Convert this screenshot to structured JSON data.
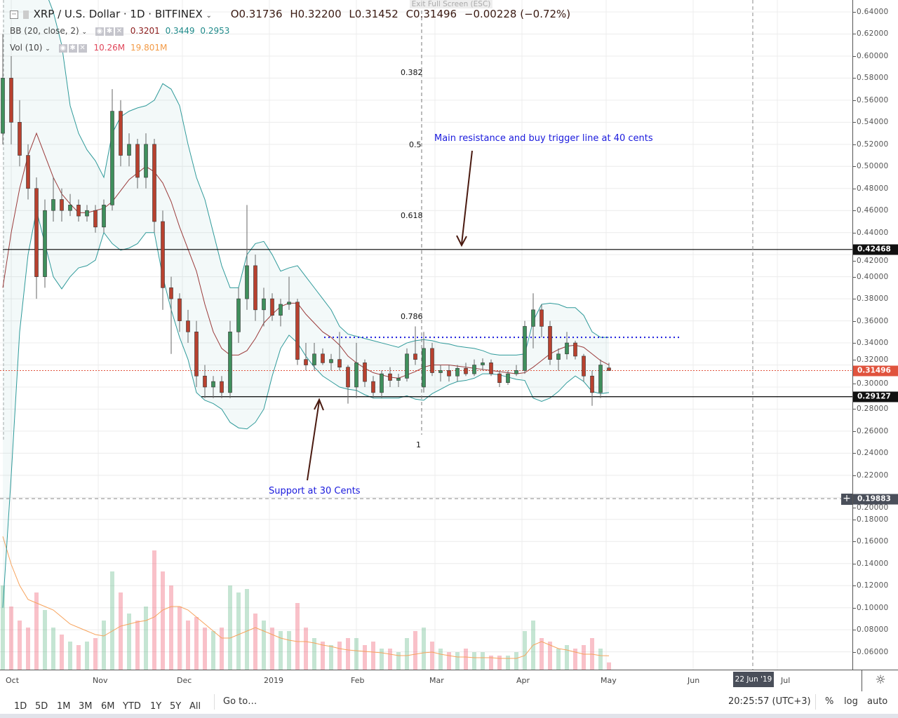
{
  "header": {
    "symbol": "XRP / U.S. Dollar · 1D · BITFINEX",
    "open": "O0.31736",
    "high": "H0.32200",
    "low": "L0.31452",
    "close": "C0.31496",
    "change": "−0.00228 (−0.72%)",
    "fullscreen_tooltip": "Exit Full Screen (ESC)"
  },
  "indicators": {
    "bb": {
      "label": "BB (20, close, 2)",
      "basis": "0.3201",
      "upper": "0.3449",
      "lower": "0.2953"
    },
    "vol": {
      "label": "Vol (10)",
      "value": "10.26M",
      "ma": "19.801M"
    }
  },
  "price_axis": {
    "ticks": [
      "0.64000",
      "0.62000",
      "0.60000",
      "0.58000",
      "0.56000",
      "0.54000",
      "0.52000",
      "0.50000",
      "0.48000",
      "0.46000",
      "0.44000",
      "0.42000",
      "0.40000",
      "0.38000",
      "0.36000",
      "0.34000",
      "0.32000",
      "0.30000",
      "0.28000",
      "0.26000",
      "0.24000",
      "0.22000",
      "0.20000",
      "0.18000",
      "0.16000",
      "0.14000",
      "0.12000",
      "0.10000",
      "0.08000",
      "0.06000"
    ],
    "resistance_label": "0.42468",
    "current_label": "0.31496",
    "support_label": "0.29127",
    "crosshair_label": "0.19883"
  },
  "time_axis": {
    "months": [
      "Oct",
      "Nov",
      "Dec",
      "2019",
      "Feb",
      "Mar",
      "Apr",
      "May",
      "Jun",
      "Jul"
    ],
    "crosshair_date": "22 Jun '19"
  },
  "annotations": {
    "resistance_note": "Main resistance and buy trigger line at 40 cents",
    "support_note": "Support at 30 Cents",
    "fib": [
      "0.382",
      "0.5",
      "0.618",
      "0.786",
      "1"
    ]
  },
  "toolbar": {
    "ranges": [
      "1D",
      "5D",
      "1M",
      "3M",
      "6M",
      "YTD",
      "1Y",
      "5Y",
      "All"
    ],
    "goto": "Go to…",
    "clock": "20:25:57 (UTC+3)",
    "percent": "%",
    "log": "log",
    "auto": "auto"
  },
  "colors": {
    "up": "#3f8f5c",
    "down": "#b8412f",
    "bb_band": "#2f9a9a",
    "bb_basis": "#9b3b3b",
    "vol_ma": "#f7a35c",
    "level_line": "#000000",
    "trigger_line": "#1a1add",
    "current_price": "#e0533d"
  },
  "chart_data": {
    "type": "candlestick",
    "interval": "1D",
    "ylim": [
      0.05,
      0.645
    ],
    "xrange": [
      "2018-09-28",
      "2019-07-15"
    ],
    "levels": {
      "resistance": 0.42468,
      "support": 0.29127,
      "trigger": 0.345,
      "current": 0.31496,
      "crosshair": 0.19883
    },
    "candles": [
      [
        "2018-09-28",
        0.53,
        0.62,
        0.52,
        0.58
      ],
      [
        "2018-10-01",
        0.58,
        0.6,
        0.52,
        0.54
      ],
      [
        "2018-10-04",
        0.54,
        0.56,
        0.5,
        0.51
      ],
      [
        "2018-10-07",
        0.51,
        0.52,
        0.47,
        0.48
      ],
      [
        "2018-10-10",
        0.48,
        0.49,
        0.38,
        0.4
      ],
      [
        "2018-10-13",
        0.4,
        0.47,
        0.39,
        0.46
      ],
      [
        "2018-10-16",
        0.46,
        0.49,
        0.45,
        0.47
      ],
      [
        "2018-10-19",
        0.47,
        0.48,
        0.45,
        0.46
      ],
      [
        "2018-10-22",
        0.46,
        0.475,
        0.455,
        0.465
      ],
      [
        "2018-10-25",
        0.465,
        0.47,
        0.45,
        0.455
      ],
      [
        "2018-10-28",
        0.455,
        0.465,
        0.45,
        0.46
      ],
      [
        "2018-10-31",
        0.46,
        0.465,
        0.44,
        0.445
      ],
      [
        "2018-11-03",
        0.445,
        0.47,
        0.44,
        0.465
      ],
      [
        "2018-11-06",
        0.465,
        0.57,
        0.46,
        0.55
      ],
      [
        "2018-11-09",
        0.55,
        0.56,
        0.5,
        0.51
      ],
      [
        "2018-11-12",
        0.51,
        0.53,
        0.5,
        0.52
      ],
      [
        "2018-11-15",
        0.52,
        0.525,
        0.48,
        0.49
      ],
      [
        "2018-11-18",
        0.49,
        0.53,
        0.48,
        0.52
      ],
      [
        "2018-11-21",
        0.52,
        0.525,
        0.44,
        0.45
      ],
      [
        "2018-11-24",
        0.45,
        0.46,
        0.37,
        0.39
      ],
      [
        "2018-11-27",
        0.39,
        0.4,
        0.33,
        0.38
      ],
      [
        "2018-11-30",
        0.38,
        0.385,
        0.35,
        0.36
      ],
      [
        "2018-12-03",
        0.36,
        0.37,
        0.34,
        0.35
      ],
      [
        "2018-12-06",
        0.35,
        0.36,
        0.3,
        0.31
      ],
      [
        "2018-12-09",
        0.31,
        0.32,
        0.29,
        0.3
      ],
      [
        "2018-12-12",
        0.3,
        0.31,
        0.29,
        0.305
      ],
      [
        "2018-12-15",
        0.305,
        0.31,
        0.29,
        0.295
      ],
      [
        "2018-12-18",
        0.295,
        0.36,
        0.29,
        0.35
      ],
      [
        "2018-12-21",
        0.35,
        0.39,
        0.34,
        0.38
      ],
      [
        "2018-12-24",
        0.38,
        0.465,
        0.37,
        0.41
      ],
      [
        "2018-12-27",
        0.41,
        0.42,
        0.36,
        0.37
      ],
      [
        "2018-12-30",
        0.37,
        0.39,
        0.355,
        0.38
      ],
      [
        "2019-01-02",
        0.38,
        0.385,
        0.36,
        0.365
      ],
      [
        "2019-01-05",
        0.365,
        0.38,
        0.355,
        0.375
      ],
      [
        "2019-01-08",
        0.375,
        0.4,
        0.37,
        0.377
      ],
      [
        "2019-01-11",
        0.377,
        0.38,
        0.32,
        0.325
      ],
      [
        "2019-01-14",
        0.325,
        0.34,
        0.315,
        0.32
      ],
      [
        "2019-01-17",
        0.32,
        0.34,
        0.315,
        0.33
      ],
      [
        "2019-01-20",
        0.33,
        0.335,
        0.32,
        0.322
      ],
      [
        "2019-01-23",
        0.322,
        0.33,
        0.315,
        0.325
      ],
      [
        "2019-01-26",
        0.325,
        0.35,
        0.315,
        0.318
      ],
      [
        "2019-01-29",
        0.318,
        0.32,
        0.285,
        0.3
      ],
      [
        "2019-02-01",
        0.3,
        0.34,
        0.29,
        0.322
      ],
      [
        "2019-02-04",
        0.322,
        0.325,
        0.3,
        0.305
      ],
      [
        "2019-02-07",
        0.305,
        0.31,
        0.29,
        0.295
      ],
      [
        "2019-02-10",
        0.295,
        0.315,
        0.29,
        0.312
      ],
      [
        "2019-02-13",
        0.312,
        0.318,
        0.3,
        0.306
      ],
      [
        "2019-02-16",
        0.306,
        0.312,
        0.3,
        0.308
      ],
      [
        "2019-02-19",
        0.308,
        0.335,
        0.305,
        0.33
      ],
      [
        "2019-02-22",
        0.33,
        0.355,
        0.32,
        0.325
      ],
      [
        "2019-02-25",
        0.3,
        0.35,
        0.295,
        0.335
      ],
      [
        "2019-02-28",
        0.335,
        0.34,
        0.31,
        0.313
      ],
      [
        "2019-03-03",
        0.313,
        0.32,
        0.305,
        0.315
      ],
      [
        "2019-03-06",
        0.315,
        0.32,
        0.305,
        0.31
      ],
      [
        "2019-03-09",
        0.31,
        0.32,
        0.305,
        0.317
      ],
      [
        "2019-03-12",
        0.317,
        0.322,
        0.31,
        0.312
      ],
      [
        "2019-03-15",
        0.312,
        0.325,
        0.31,
        0.32
      ],
      [
        "2019-03-18",
        0.32,
        0.326,
        0.315,
        0.322
      ],
      [
        "2019-03-21",
        0.322,
        0.325,
        0.31,
        0.312
      ],
      [
        "2019-03-24",
        0.312,
        0.315,
        0.3,
        0.304
      ],
      [
        "2019-03-27",
        0.304,
        0.315,
        0.302,
        0.312
      ],
      [
        "2019-03-30",
        0.312,
        0.32,
        0.31,
        0.315
      ],
      [
        "2019-04-02",
        0.315,
        0.36,
        0.312,
        0.355
      ],
      [
        "2019-04-05",
        0.355,
        0.385,
        0.335,
        0.37
      ],
      [
        "2019-04-08",
        0.37,
        0.375,
        0.345,
        0.355
      ],
      [
        "2019-04-11",
        0.355,
        0.36,
        0.32,
        0.325
      ],
      [
        "2019-04-14",
        0.325,
        0.335,
        0.315,
        0.33
      ],
      [
        "2019-04-17",
        0.33,
        0.35,
        0.325,
        0.34
      ],
      [
        "2019-04-20",
        0.34,
        0.342,
        0.325,
        0.328
      ],
      [
        "2019-04-23",
        0.328,
        0.33,
        0.305,
        0.31
      ],
      [
        "2019-04-26",
        0.31,
        0.315,
        0.283,
        0.295
      ],
      [
        "2019-04-29",
        0.295,
        0.325,
        0.29,
        0.32
      ],
      [
        "2019-05-02",
        0.31736,
        0.322,
        0.31452,
        0.31496
      ]
    ],
    "bb_upper": [
      0.7,
      0.7,
      0.7,
      0.69,
      0.68,
      0.66,
      0.64,
      0.61,
      0.555,
      0.53,
      0.515,
      0.505,
      0.49,
      0.53,
      0.545,
      0.55,
      0.553,
      0.555,
      0.56,
      0.575,
      0.57,
      0.555,
      0.52,
      0.49,
      0.47,
      0.44,
      0.41,
      0.39,
      0.39,
      0.42,
      0.43,
      0.432,
      0.42,
      0.405,
      0.408,
      0.41,
      0.4,
      0.39,
      0.38,
      0.37,
      0.355,
      0.348,
      0.346,
      0.344,
      0.342,
      0.34,
      0.338,
      0.336,
      0.34,
      0.342,
      0.343,
      0.342,
      0.34,
      0.339,
      0.337,
      0.336,
      0.335,
      0.333,
      0.33,
      0.329,
      0.329,
      0.329,
      0.33,
      0.36,
      0.375,
      0.376,
      0.375,
      0.372,
      0.372,
      0.365,
      0.35,
      0.345,
      0.345
    ],
    "bb_basis": [
      0.39,
      0.44,
      0.48,
      0.51,
      0.53,
      0.51,
      0.49,
      0.475,
      0.466,
      0.458,
      0.458,
      0.46,
      0.462,
      0.468,
      0.478,
      0.488,
      0.494,
      0.5,
      0.495,
      0.485,
      0.468,
      0.445,
      0.425,
      0.405,
      0.375,
      0.35,
      0.335,
      0.329,
      0.329,
      0.333,
      0.344,
      0.358,
      0.366,
      0.373,
      0.376,
      0.376,
      0.366,
      0.358,
      0.35,
      0.345,
      0.338,
      0.328,
      0.322,
      0.317,
      0.313,
      0.311,
      0.309,
      0.308,
      0.311,
      0.314,
      0.318,
      0.32,
      0.32,
      0.32,
      0.319,
      0.318,
      0.317,
      0.316,
      0.315,
      0.314,
      0.313,
      0.312,
      0.313,
      0.318,
      0.324,
      0.33,
      0.334,
      0.337,
      0.338,
      0.336,
      0.33,
      0.324,
      0.32
    ],
    "bb_lower": [
      0.1,
      0.22,
      0.35,
      0.42,
      0.46,
      0.43,
      0.4,
      0.389,
      0.4,
      0.408,
      0.41,
      0.415,
      0.44,
      0.43,
      0.424,
      0.426,
      0.43,
      0.44,
      0.44,
      0.4,
      0.37,
      0.345,
      0.325,
      0.295,
      0.288,
      0.285,
      0.28,
      0.268,
      0.263,
      0.262,
      0.268,
      0.28,
      0.31,
      0.335,
      0.347,
      0.34,
      0.328,
      0.318,
      0.31,
      0.305,
      0.3,
      0.298,
      0.297,
      0.293,
      0.29,
      0.29,
      0.29,
      0.29,
      0.292,
      0.289,
      0.288,
      0.294,
      0.298,
      0.302,
      0.305,
      0.306,
      0.308,
      0.312,
      0.312,
      0.311,
      0.309,
      0.307,
      0.306,
      0.29,
      0.287,
      0.29,
      0.296,
      0.304,
      0.31,
      0.305,
      0.296,
      0.294,
      0.295
    ],
    "volume_m": [
      120,
      90,
      70,
      60,
      110,
      85,
      60,
      50,
      40,
      35,
      40,
      45,
      70,
      140,
      110,
      80,
      70,
      90,
      170,
      140,
      120,
      90,
      70,
      75,
      60,
      55,
      60,
      120,
      110,
      115,
      80,
      70,
      60,
      55,
      55,
      95,
      60,
      45,
      40,
      35,
      40,
      45,
      45,
      35,
      40,
      30,
      30,
      25,
      45,
      55,
      60,
      40,
      30,
      25,
      25,
      30,
      25,
      25,
      20,
      20,
      20,
      25,
      55,
      70,
      45,
      40,
      30,
      35,
      30,
      35,
      45,
      30,
      10.26
    ],
    "volume_ma_m": [
      190,
      150,
      120,
      100,
      95,
      90,
      85,
      75,
      65,
      60,
      55,
      50,
      48,
      55,
      62,
      65,
      68,
      70,
      75,
      85,
      90,
      90,
      85,
      75,
      65,
      55,
      45,
      45,
      50,
      55,
      60,
      55,
      50,
      45,
      42,
      40,
      40,
      38,
      35,
      33,
      30,
      28,
      27,
      26,
      25,
      24,
      22,
      20,
      20,
      22,
      24,
      25,
      22,
      20,
      18,
      18,
      17,
      17,
      17,
      16,
      16,
      16,
      20,
      35,
      40,
      35,
      30,
      28,
      25,
      22,
      22,
      20,
      19.8
    ]
  }
}
